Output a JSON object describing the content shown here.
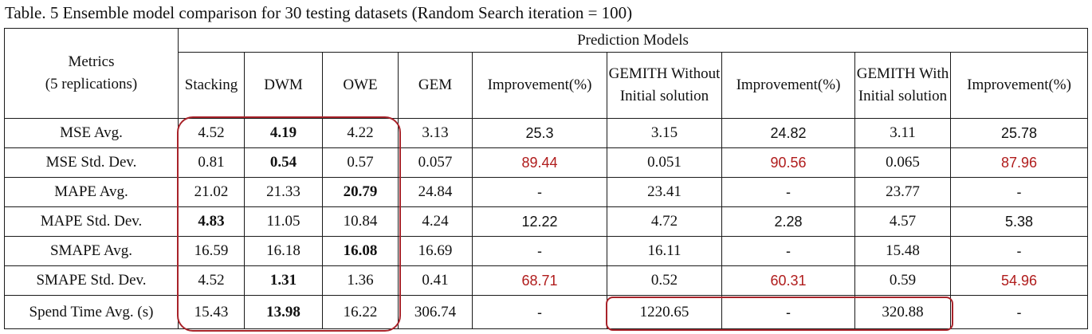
{
  "caption": "Table. 5  Ensemble model comparison for 30 testing datasets (Random Search iteration = 100)",
  "header": {
    "metrics_line1": "Metrics",
    "metrics_line2": "(5 replications)",
    "group": "Prediction Models",
    "columns": [
      "Stacking",
      "DWM",
      "OWE",
      "GEM",
      "Improvement(%)",
      "GEMITH Without Initial solution",
      "Improvement(%)",
      "GEMITH With Initial solution",
      "Improvement(%)"
    ]
  },
  "rows": [
    {
      "metric": "MSE Avg.",
      "values": [
        "4.52",
        "4.19",
        "4.22",
        "3.13",
        "25.3",
        "3.15",
        "24.82",
        "3.11",
        "25.78"
      ]
    },
    {
      "metric": "MSE Std. Dev.",
      "values": [
        "0.81",
        "0.54",
        "0.57",
        "0.057",
        "89.44",
        "0.051",
        "90.56",
        "0.065",
        "87.96"
      ]
    },
    {
      "metric": "MAPE Avg.",
      "values": [
        "21.02",
        "21.33",
        "20.79",
        "24.84",
        "-",
        "23.41",
        "-",
        "23.77",
        "-"
      ]
    },
    {
      "metric": "MAPE Std. Dev.",
      "values": [
        "4.83",
        "11.05",
        "10.84",
        "4.24",
        "12.22",
        "4.72",
        "2.28",
        "4.57",
        "5.38"
      ]
    },
    {
      "metric": "SMAPE Avg.",
      "values": [
        "16.59",
        "16.18",
        "16.08",
        "16.69",
        "-",
        "16.11",
        "-",
        "15.48",
        "-"
      ]
    },
    {
      "metric": "SMAPE Std. Dev.",
      "values": [
        "4.52",
        "1.31",
        "1.36",
        "0.41",
        "68.71",
        "0.52",
        "60.31",
        "0.59",
        "54.96"
      ]
    },
    {
      "metric": "Spend Time Avg. (s)",
      "values": [
        "15.43",
        "13.98",
        "16.22",
        "306.74",
        "-",
        "1220.65",
        "-",
        "320.88",
        "-"
      ]
    }
  ],
  "bold_cells": [
    [
      0,
      1
    ],
    [
      1,
      1
    ],
    [
      2,
      2
    ],
    [
      3,
      0
    ],
    [
      4,
      2
    ],
    [
      5,
      1
    ],
    [
      6,
      1
    ]
  ],
  "red_cells": [
    [
      1,
      4
    ],
    [
      1,
      6
    ],
    [
      1,
      8
    ],
    [
      5,
      4
    ],
    [
      5,
      6
    ],
    [
      5,
      8
    ]
  ],
  "highlight_color": "#a8232a",
  "red_text_color": "#b01c1c"
}
